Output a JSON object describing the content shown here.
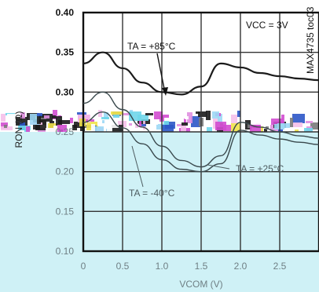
{
  "chart_data": {
    "type": "line",
    "xlabel": "VCOM (V)",
    "ylabel": "RON (Ω)",
    "xlim": [
      0,
      3.0
    ],
    "ylim": [
      0.1,
      0.4
    ],
    "x_ticks": [
      "0",
      "0.5",
      "1.0",
      "1.5",
      "2.0",
      "2.5"
    ],
    "y_ticks": [
      "0.40",
      "0.35",
      "0.30",
      "0.25",
      "0.20",
      "0.15",
      "0.10"
    ],
    "series": [
      {
        "name": "TA = +85°C",
        "x": [
          0,
          0.25,
          0.5,
          0.75,
          1.0,
          1.25,
          1.5,
          1.75,
          2.0,
          2.25,
          2.5,
          2.75,
          3.0
        ],
        "y": [
          0.336,
          0.35,
          0.33,
          0.312,
          0.3,
          0.297,
          0.307,
          0.336,
          0.331,
          0.324,
          0.32,
          0.317,
          0.315
        ]
      },
      {
        "name": "TA = +25°C",
        "x": [
          0,
          0.25,
          0.5,
          0.75,
          1.0,
          1.25,
          1.5,
          1.75,
          2.0,
          2.25,
          2.5,
          2.75,
          3.0
        ],
        "y": [
          0.286,
          0.3,
          0.278,
          0.256,
          0.232,
          0.214,
          0.206,
          0.22,
          0.262,
          0.256,
          0.25,
          0.245,
          0.242
        ]
      },
      {
        "name": "TA = -40°C",
        "x": [
          0,
          0.25,
          0.5,
          0.75,
          1.0,
          1.25,
          1.5,
          1.75,
          2.0,
          2.25,
          2.5,
          2.75,
          3.0
        ],
        "y": [
          0.262,
          0.275,
          0.255,
          0.235,
          0.215,
          0.203,
          0.2,
          0.21,
          0.252,
          0.246,
          0.241,
          0.237,
          0.234
        ]
      }
    ],
    "annotations": {
      "vcc": "VCC = 3V",
      "ta85": "TA = +85°C",
      "ta25": "TA = +25°C",
      "ta40": "TA = -40°C",
      "code": "MAX4735 toc03"
    },
    "grid": true,
    "legend": "none"
  }
}
